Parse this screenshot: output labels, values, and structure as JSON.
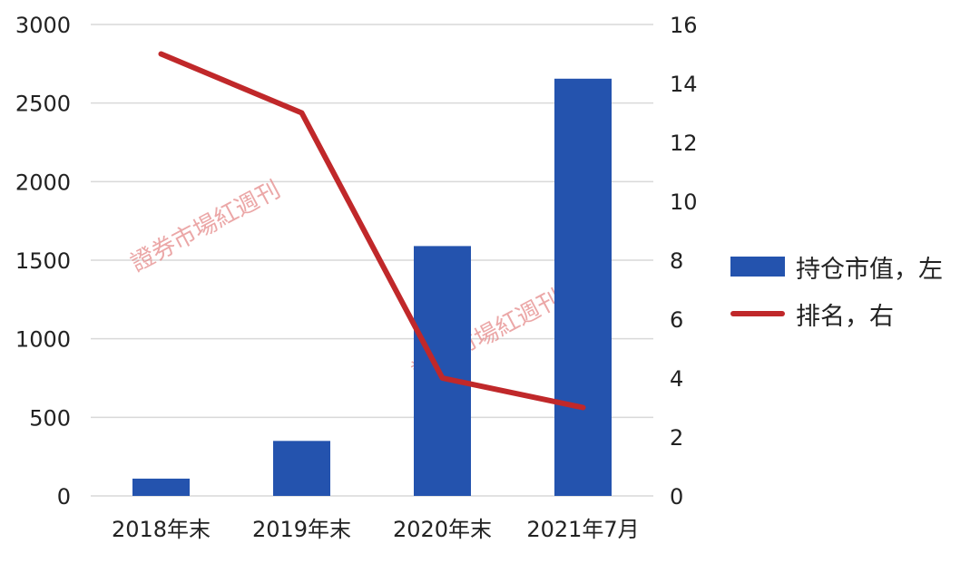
{
  "chart_data": {
    "type": "bar",
    "categories": [
      "2018年末",
      "2019年末",
      "2020年末",
      "2021年7月"
    ],
    "series": [
      {
        "name": "持仓市值，左",
        "type": "bar",
        "axis": "left",
        "color": "#2453ae",
        "values": [
          110,
          350,
          1590,
          2655
        ]
      },
      {
        "name": "排名，右",
        "type": "line",
        "axis": "right",
        "color": "#c0282a",
        "values": [
          15,
          13,
          4,
          3
        ]
      }
    ],
    "y_left": {
      "min": 0,
      "max": 3000,
      "ticks": [
        0,
        500,
        1000,
        1500,
        2000,
        2500,
        3000
      ]
    },
    "y_right": {
      "min": 0,
      "max": 16,
      "ticks": [
        0,
        2,
        4,
        6,
        8,
        10,
        12,
        14,
        16
      ]
    },
    "grid": true,
    "legend_position": "right"
  },
  "watermark": {
    "text": "證券市場紅週刊"
  }
}
